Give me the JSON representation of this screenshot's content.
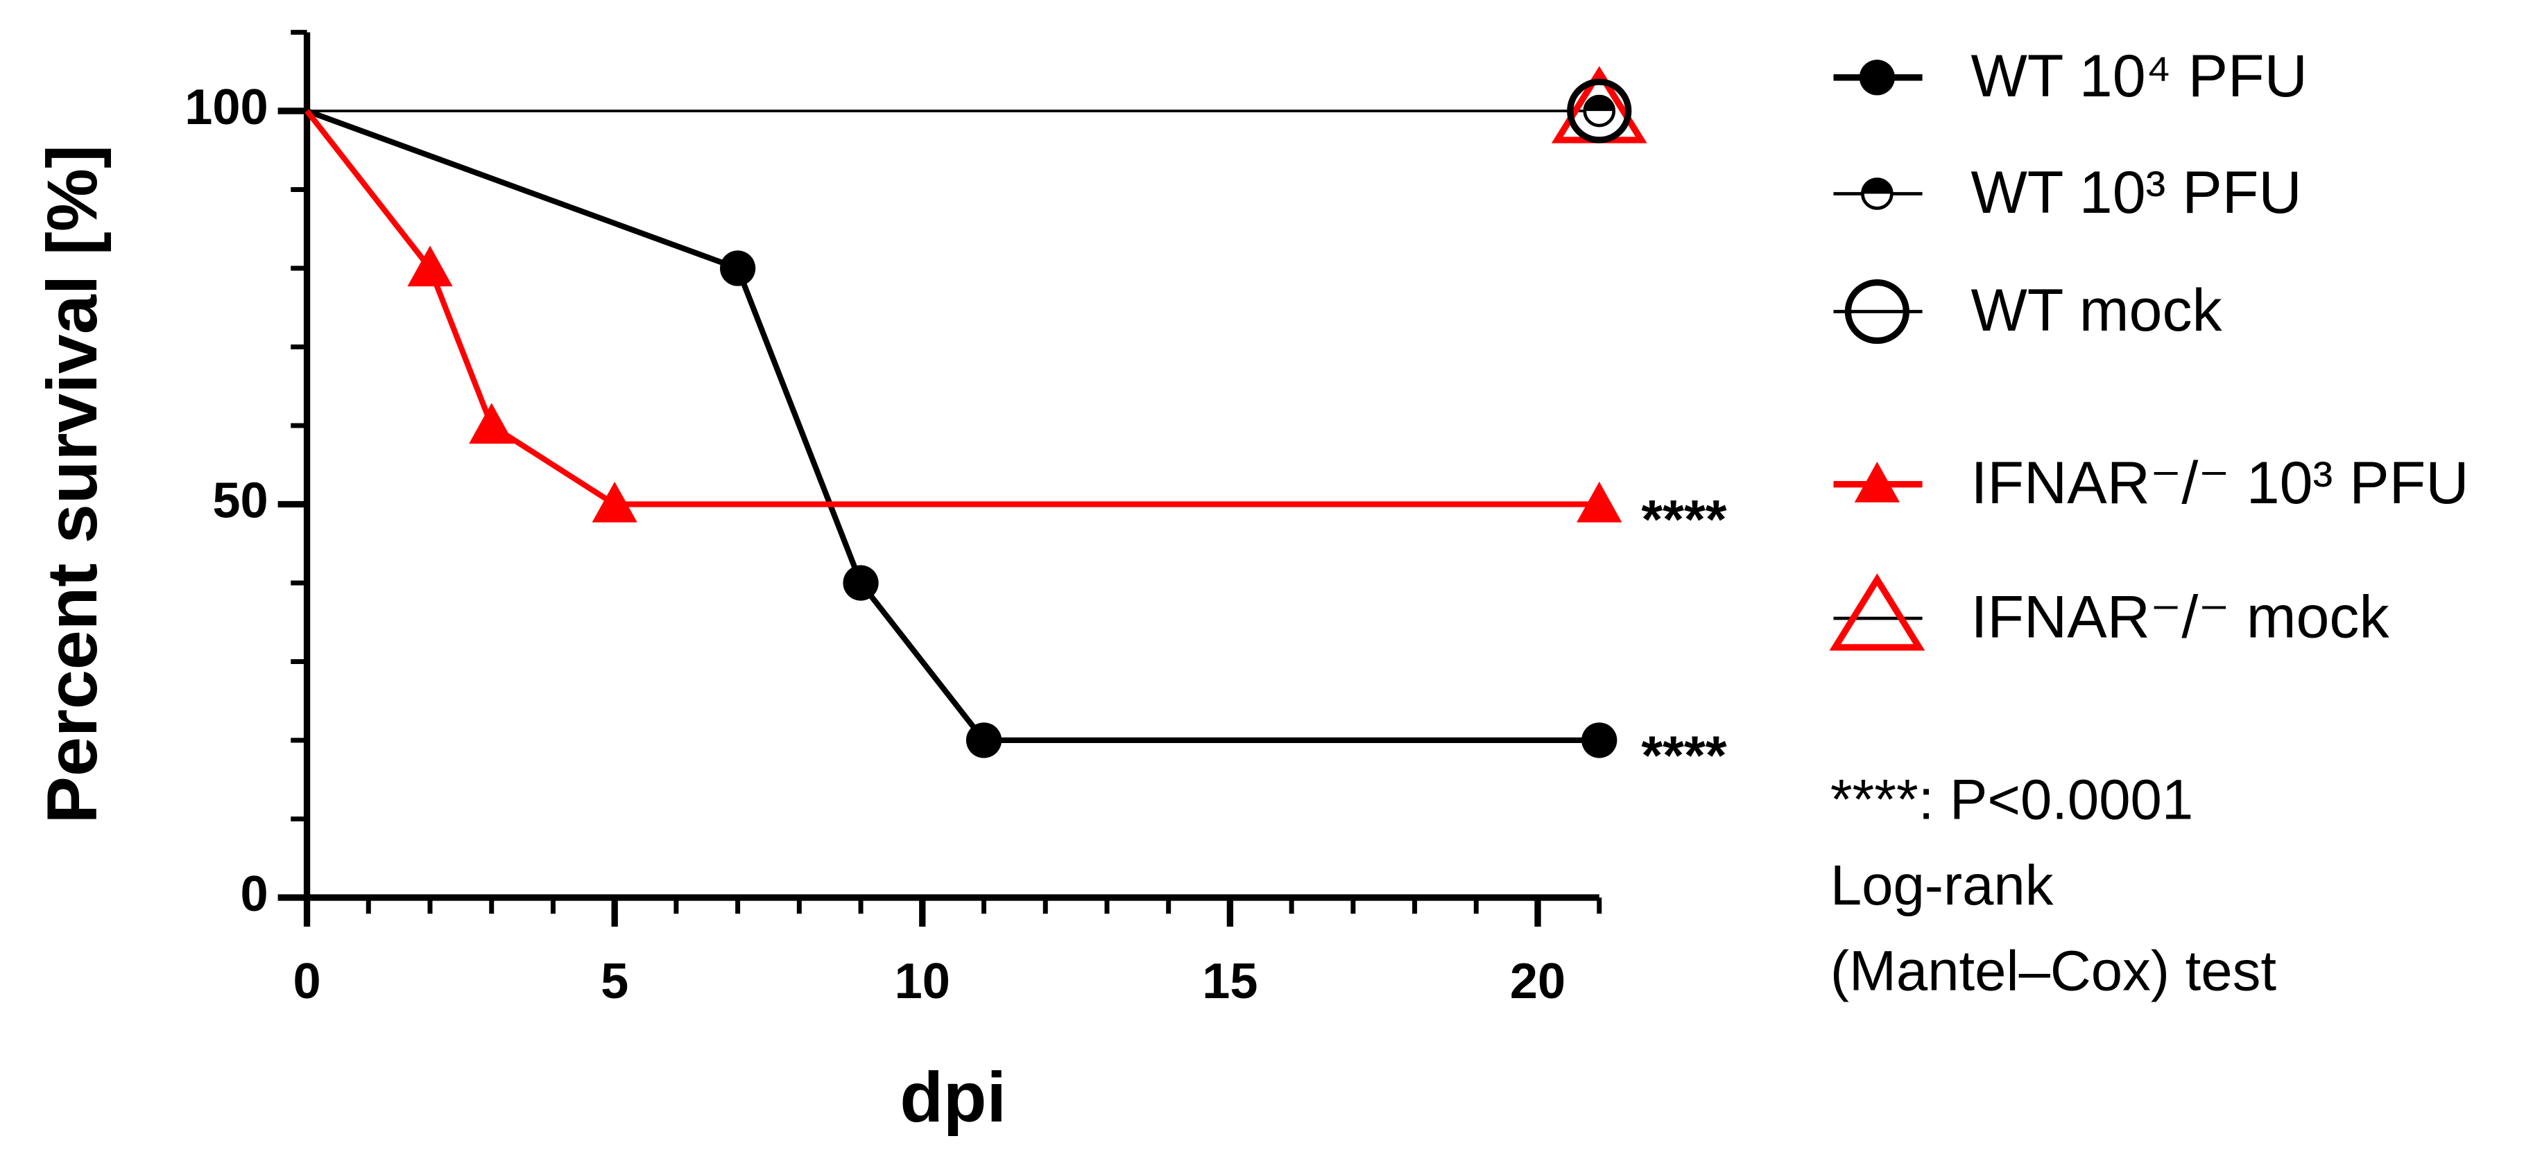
{
  "chart_data": {
    "type": "line",
    "xlabel": "dpi",
    "ylabel": "Percent survival [%]",
    "xlim": [
      0,
      21
    ],
    "ylim": [
      0,
      110
    ],
    "xticks": [
      0,
      5,
      10,
      15,
      20
    ],
    "yticks": [
      0,
      50,
      100
    ],
    "xminorticks": [
      1,
      2,
      3,
      4,
      6,
      7,
      8,
      9,
      11,
      12,
      13,
      14,
      16,
      17,
      18,
      19,
      21
    ],
    "yminorticks": [
      10,
      20,
      30,
      40,
      60,
      70,
      80,
      90,
      110
    ],
    "series": [
      {
        "name": "WT 10⁴ PFU",
        "color": "#000000",
        "marker": "circle",
        "x": [
          0,
          7,
          9,
          11,
          21
        ],
        "values": [
          100,
          80,
          40,
          20,
          20
        ]
      },
      {
        "name": "WT 10³ PFU",
        "color": "#000000",
        "marker": "half-circle",
        "x": [
          0,
          21
        ],
        "values": [
          100,
          100
        ]
      },
      {
        "name": "WT mock",
        "color": "#000000",
        "marker": "open-circle",
        "x": [
          0,
          21
        ],
        "values": [
          100,
          100
        ]
      },
      {
        "name": "IFNAR⁻/⁻ 10³ PFU",
        "color": "#ff0000",
        "marker": "triangle",
        "x": [
          0,
          2,
          3,
          5,
          21
        ],
        "values": [
          100,
          80,
          60,
          50,
          50
        ]
      },
      {
        "name": "IFNAR⁻/⁻ mock",
        "color": "#ff0000",
        "line_color": "#000000",
        "marker": "open-triangle",
        "x": [
          0,
          21
        ],
        "values": [
          100,
          100
        ]
      }
    ],
    "annotations": [
      "****",
      "****"
    ],
    "footnote": [
      "****: P<0.0001",
      "Log-rank",
      "(Mantel–Cox) test"
    ]
  }
}
